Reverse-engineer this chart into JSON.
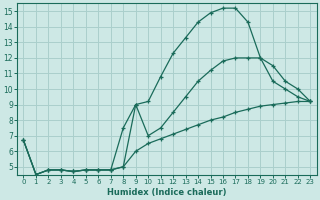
{
  "xlabel": "Humidex (Indice chaleur)",
  "ylabel": "",
  "xlim": [
    -0.5,
    23.5
  ],
  "ylim": [
    4.5,
    15.5
  ],
  "yticks": [
    5,
    6,
    7,
    8,
    9,
    10,
    11,
    12,
    13,
    14,
    15
  ],
  "xticks": [
    0,
    1,
    2,
    3,
    4,
    5,
    6,
    7,
    8,
    9,
    10,
    11,
    12,
    13,
    14,
    15,
    16,
    17,
    18,
    19,
    20,
    21,
    22,
    23
  ],
  "background_color": "#cde8e5",
  "grid_color": "#aacfcc",
  "line_color": "#1a6b5a",
  "line1_x": [
    0,
    1,
    2,
    3,
    4,
    5,
    6,
    7,
    8,
    9,
    10,
    11,
    12,
    13,
    14,
    15,
    16,
    17,
    18,
    19,
    20,
    21,
    22,
    23
  ],
  "line1_y": [
    6.7,
    4.5,
    4.8,
    4.8,
    4.7,
    4.8,
    4.8,
    4.8,
    5.0,
    9.0,
    9.2,
    10.8,
    12.3,
    13.3,
    14.3,
    14.9,
    15.2,
    15.2,
    14.3,
    12.0,
    10.5,
    10.0,
    9.5,
    9.2
  ],
  "line2_x": [
    0,
    1,
    2,
    3,
    4,
    5,
    6,
    7,
    8,
    9,
    10,
    11,
    12,
    13,
    14,
    15,
    16,
    17,
    18,
    19,
    20,
    21,
    22,
    23
  ],
  "line2_y": [
    6.7,
    4.5,
    4.8,
    4.8,
    4.7,
    4.8,
    4.8,
    4.8,
    7.5,
    9.0,
    7.0,
    7.5,
    8.5,
    9.5,
    10.5,
    11.2,
    11.8,
    12.0,
    12.0,
    12.0,
    11.5,
    10.5,
    10.0,
    9.2
  ],
  "line3_x": [
    0,
    1,
    2,
    3,
    4,
    5,
    6,
    7,
    8,
    9,
    10,
    11,
    12,
    13,
    14,
    15,
    16,
    17,
    18,
    19,
    20,
    21,
    22,
    23
  ],
  "line3_y": [
    6.7,
    4.5,
    4.8,
    4.8,
    4.7,
    4.8,
    4.8,
    4.8,
    5.0,
    6.0,
    6.5,
    6.8,
    7.1,
    7.4,
    7.7,
    8.0,
    8.2,
    8.5,
    8.7,
    8.9,
    9.0,
    9.1,
    9.2,
    9.2
  ]
}
